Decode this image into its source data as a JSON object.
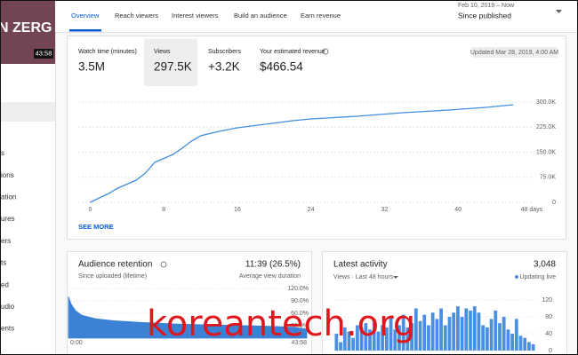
{
  "sidebar": {
    "thumbnail": {
      "title": "N ZERG",
      "duration": "43:58"
    },
    "items": [
      "s",
      "ions",
      "ation",
      "ures",
      "ers",
      "ts",
      "ed",
      "udio",
      "ents"
    ]
  },
  "tabs": [
    "Overview",
    "Reach viewers",
    "Interest viewers",
    "Build an audience",
    "Earn revenue"
  ],
  "date_range": {
    "range": "Feb 10, 2019 – Now",
    "label": "Since published"
  },
  "metrics": [
    {
      "label": "Watch time (minutes)",
      "value": "3.5M"
    },
    {
      "label": "Views",
      "value": "297.5K"
    },
    {
      "label": "Subscribers",
      "value": "+3.2K"
    },
    {
      "label": "Your estimated revenue",
      "value": "$466.54"
    }
  ],
  "updated": "Updated Mar 28, 2019, 4:00 AM",
  "see_more": "SEE MORE",
  "watermark": "koreantech.org",
  "chart_data": [
    {
      "type": "line",
      "color": "#3f8fde",
      "x": [
        0,
        2,
        3,
        5,
        6,
        7,
        9,
        10,
        11,
        12,
        14,
        16,
        19,
        22,
        24,
        29,
        34,
        39,
        43,
        46
      ],
      "values": [
        0,
        26500,
        42500,
        66400,
        87600,
        119500,
        143400,
        162000,
        183200,
        199100,
        212400,
        223000,
        233600,
        244200,
        249600,
        257500,
        268100,
        276100,
        284100,
        292000
      ],
      "xlim": [
        -1.3,
        48.2
      ],
      "xticks": [
        0,
        8,
        16,
        24,
        32,
        40,
        {
          "value": 48,
          "label": "48 days"
        }
      ],
      "ylim": [
        0,
        300000
      ],
      "yticks": [
        0,
        {
          "value": 75000,
          "label": "75.0K"
        },
        {
          "value": 150000,
          "label": "150.0K"
        },
        {
          "value": 225000,
          "label": "225.0K"
        },
        {
          "value": 300000,
          "label": "300.0K"
        }
      ],
      "grid": true
    },
    {
      "type": "area",
      "title": "Audience retention",
      "summary": "11:39 (26.5%)",
      "subtitle": "Since uploaded (lifetime)",
      "summary_caption": "Average view duration",
      "color": "#3b82d6",
      "x": [
        0,
        30,
        80,
        150,
        300,
        500,
        800,
        1200,
        1600,
        2000,
        2300,
        2500,
        2638
      ],
      "values": [
        100,
        82,
        66,
        55,
        47,
        42,
        38,
        34,
        32,
        30,
        28,
        26,
        22
      ],
      "xlim": [
        0,
        2638
      ],
      "xticks": [
        {
          "value": 0,
          "label": "0:00"
        },
        {
          "value": 2638,
          "label": "43:58"
        }
      ],
      "ylim": [
        0,
        120
      ],
      "yticks": [
        {
          "value": 30,
          "label": "30.0%"
        },
        {
          "value": 60,
          "label": "60.0%"
        },
        {
          "value": 90,
          "label": "90.0%"
        },
        {
          "value": 120,
          "label": "120.0%"
        }
      ],
      "grid": true
    },
    {
      "type": "bar",
      "title": "Latest activity",
      "summary": "3,048",
      "subtitle": "Views · Last 48 hours",
      "legend": "Updating live",
      "color": "#4a8fe2",
      "values": [
        40,
        20,
        55,
        45,
        30,
        60,
        55,
        65,
        50,
        70,
        45,
        60,
        55,
        80,
        50,
        60,
        85,
        55,
        65,
        100,
        70,
        85,
        60,
        90,
        75,
        100,
        60,
        80,
        90,
        105,
        80,
        100,
        95,
        105,
        90,
        60,
        55,
        75,
        95,
        65,
        80,
        50,
        40,
        75,
        35,
        30,
        20,
        15
      ],
      "ylim": [
        0,
        120
      ],
      "yticks": [
        0,
        40,
        80,
        120
      ],
      "grid": true
    }
  ]
}
